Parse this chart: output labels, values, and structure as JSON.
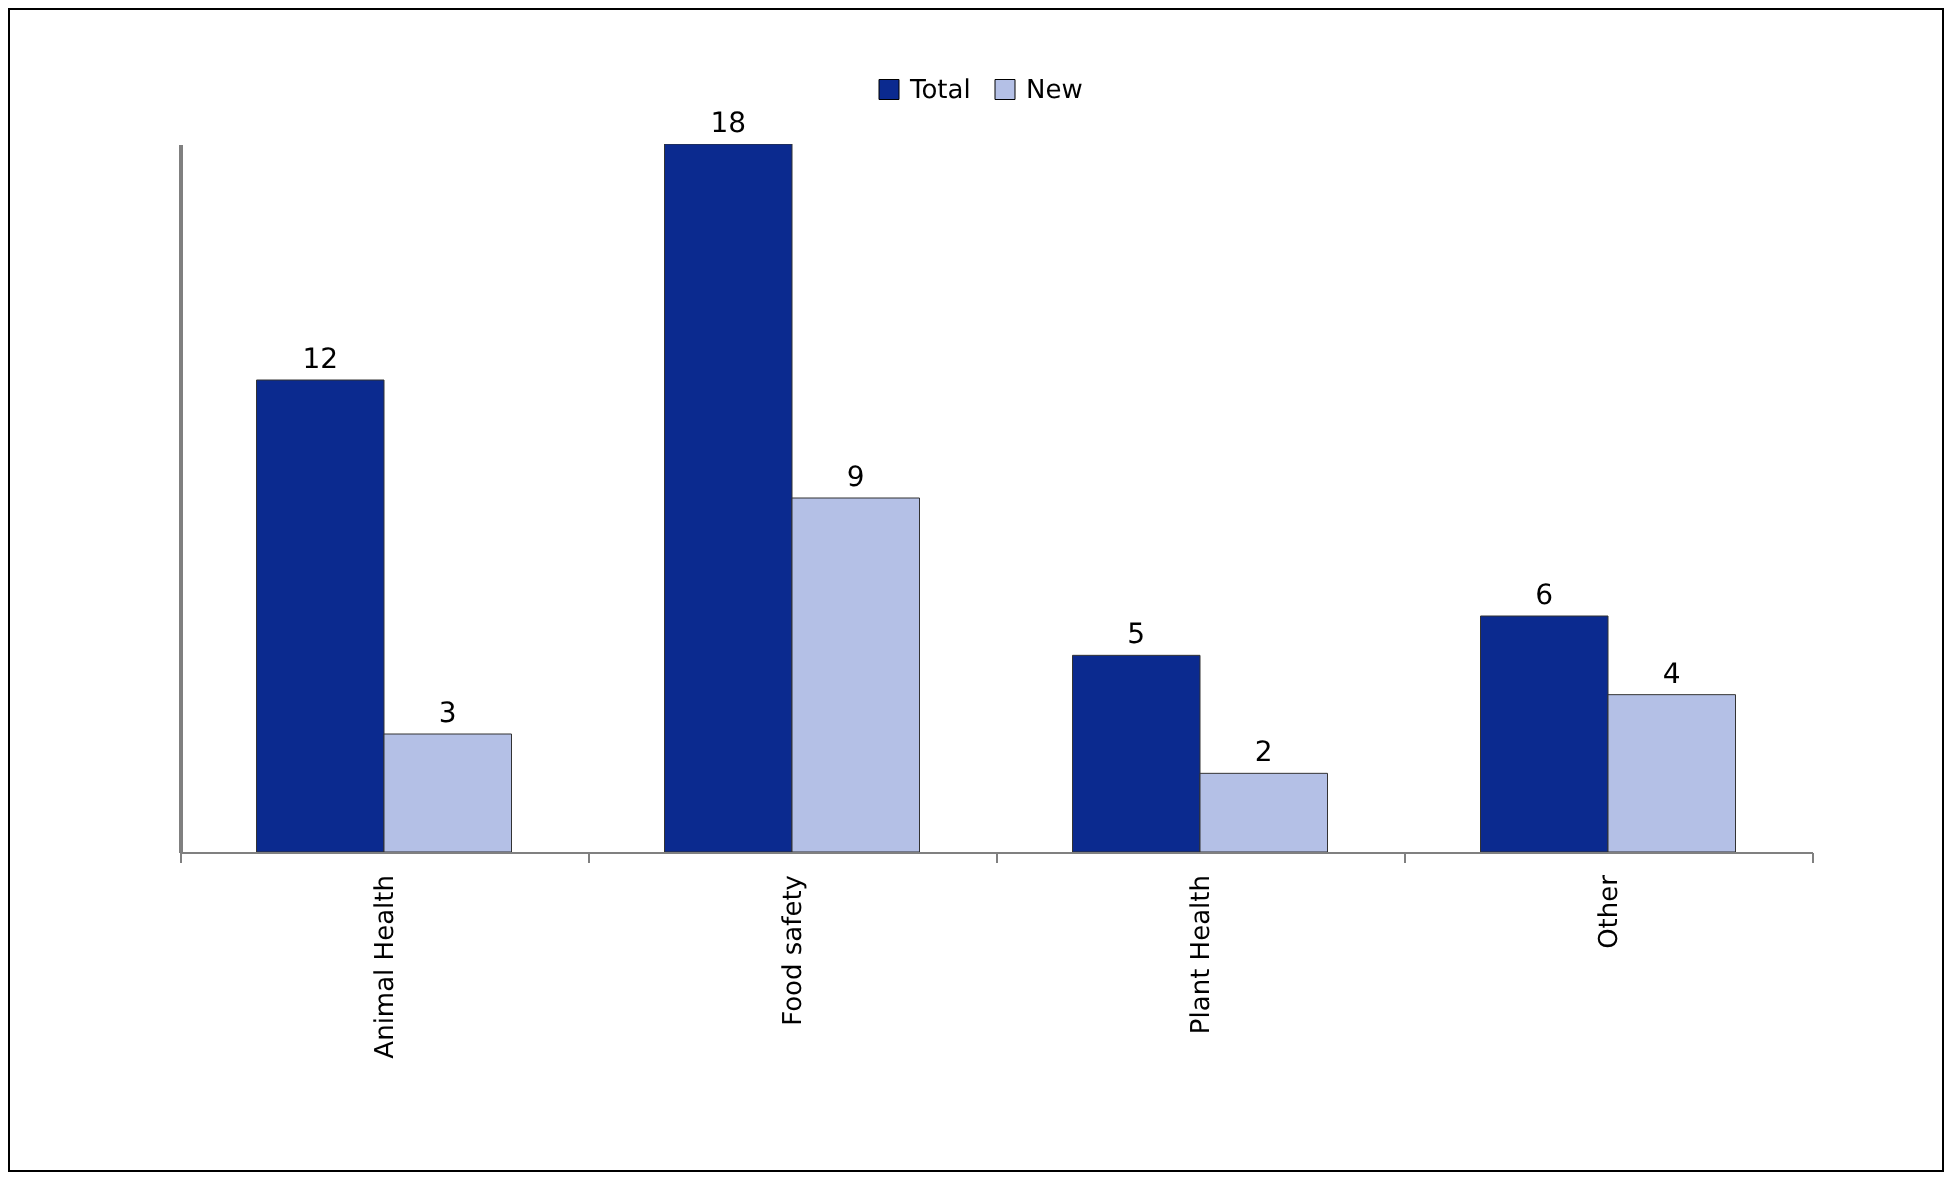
{
  "chart_data": {
    "type": "bar",
    "categories": [
      "Animal Health",
      "Food safety",
      "Plant Health",
      "Other"
    ],
    "series": [
      {
        "name": "Total",
        "color": "#0b2a8f",
        "values": [
          12,
          18,
          5,
          6
        ]
      },
      {
        "name": "New",
        "color": "#b4c0e6",
        "values": [
          3,
          9,
          2,
          4
        ]
      }
    ],
    "ylim": [
      0,
      18
    ],
    "data_labels": true,
    "legend": "top",
    "grid": false,
    "tick_labels": "x"
  }
}
